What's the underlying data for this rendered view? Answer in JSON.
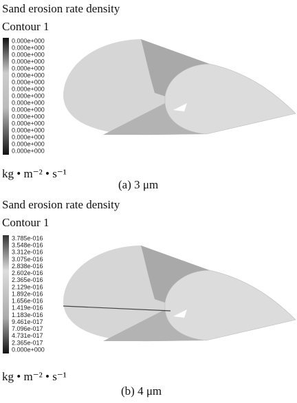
{
  "panels": [
    {
      "title": "Sand erosion rate density",
      "subtitle": "Contour 1",
      "legend_labels": [
        "0.000e+000",
        "0.000e+000",
        "0.000e+000",
        "0.000e+000",
        "0.000e+000",
        "0.000e+000",
        "0.000e+000",
        "0.000e+000",
        "0.000e+000",
        "0.000e+000",
        "0.000e+000",
        "0.000e+000",
        "0.000e+000",
        "0.000e+000",
        "0.000e+000",
        "0.000e+000",
        "0.000e+000"
      ],
      "unit": "kg • m⁻² • s⁻¹",
      "caption": "(a) 3 μm"
    },
    {
      "title": "Sand erosion rate density",
      "subtitle": "Contour 1",
      "legend_labels": [
        "3.785e-016",
        "3.548e-016",
        "3.312e-016",
        "3.075e-016",
        "2.838e-016",
        "2.602e-016",
        "2.365e-016",
        "2.129e-016",
        "1.892e-016",
        "1.656e-016",
        "1.419e-016",
        "1.183e-016",
        "9.461e-017",
        "7.096e-017",
        "4.731e-017",
        "2.365e-017",
        "0.000e+000"
      ],
      "unit": "kg • m⁻² • s⁻¹",
      "caption": "(b) 4 μm"
    }
  ]
}
